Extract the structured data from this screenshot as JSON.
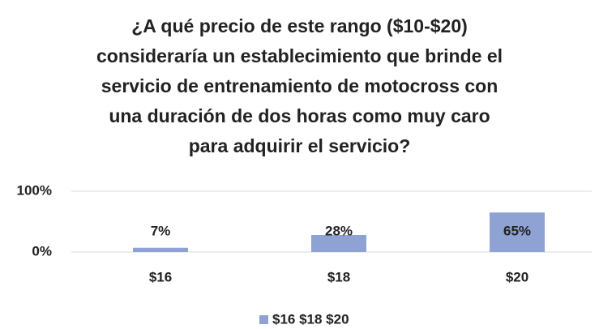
{
  "chart_data": {
    "type": "bar",
    "title": "¿A qué precio de este rango ($10-$20)\nconsideraría un establecimiento que brinde el\nservicio de entrenamiento de motocross con\nuna duración de dos horas como muy caro\npara adquirir el servicio?",
    "categories": [
      "$16",
      "$18",
      "$20"
    ],
    "series": [
      {
        "name": "$16 $18 $20",
        "color": "#8fa2d4",
        "values": [
          7,
          28,
          65
        ],
        "value_labels": [
          "7%",
          "28%",
          "65%"
        ]
      }
    ],
    "ylim": [
      0,
      100
    ],
    "yticks": [
      {
        "value": 0,
        "label": "0%"
      },
      {
        "value": 100,
        "label": "100%"
      }
    ],
    "grid": true,
    "legend": "bottom"
  }
}
